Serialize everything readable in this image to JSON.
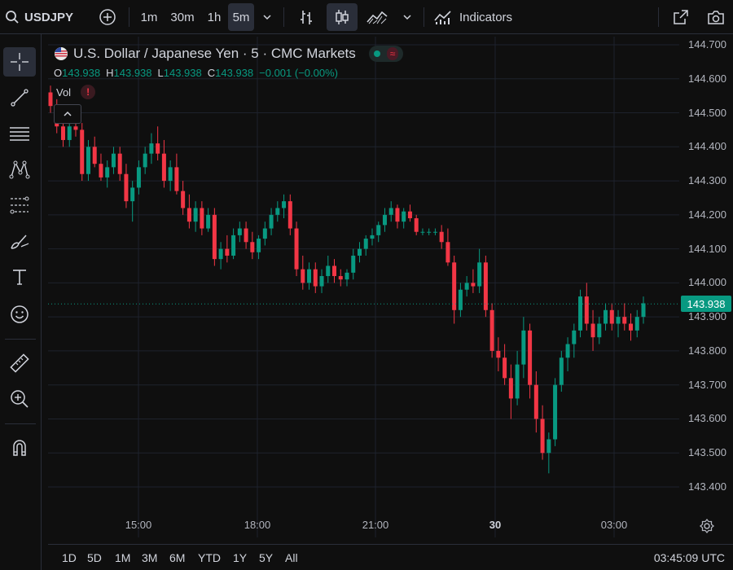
{
  "toolbar": {
    "symbol": "USDJPY",
    "intervals": [
      "1m",
      "30m",
      "1h",
      "5m"
    ],
    "active_interval": "5m",
    "indicators_label": "Indicators"
  },
  "legend": {
    "title": "U.S. Dollar / Japanese Yen · 5 · CMC Markets",
    "o_label": "O",
    "o_value": "143.938",
    "h_label": "H",
    "h_value": "143.938",
    "l_label": "L",
    "l_value": "143.938",
    "c_label": "C",
    "c_value": "143.938",
    "change": "−0.001 (−0.00%)",
    "vol_label": "Vol",
    "vol_alert": "!",
    "collapse_glyph": "^"
  },
  "price_axis": {
    "labels": [
      "144.700",
      "144.600",
      "144.500",
      "144.400",
      "144.300",
      "144.200",
      "144.100",
      "144.000",
      "143.900",
      "143.800",
      "143.700",
      "143.600",
      "143.500",
      "143.400"
    ],
    "current_price": "143.938"
  },
  "time_axis": {
    "labels": [
      "15:00",
      "18:00",
      "21:00",
      "30",
      "03:00"
    ]
  },
  "bottom": {
    "ranges": [
      "1D",
      "5D",
      "1M",
      "3M",
      "6M",
      "YTD",
      "1Y",
      "5Y",
      "All"
    ],
    "clock": "03:45:09 UTC"
  },
  "colors": {
    "up": "#089981",
    "down": "#f23645",
    "background": "#0f0f0f",
    "grid": "#1e222d"
  },
  "chart_data": {
    "type": "candlestick",
    "y_range": [
      143.35,
      144.75
    ],
    "last": 143.938,
    "candles": [
      [
        144.56,
        144.58,
        144.5,
        144.52
      ],
      [
        144.52,
        144.54,
        144.44,
        144.46
      ],
      [
        144.46,
        144.5,
        144.4,
        144.42
      ],
      [
        144.42,
        144.48,
        144.4,
        144.46
      ],
      [
        144.46,
        144.52,
        144.43,
        144.45
      ],
      [
        144.45,
        144.47,
        144.3,
        144.32
      ],
      [
        144.32,
        144.42,
        144.3,
        144.4
      ],
      [
        144.4,
        144.43,
        144.34,
        144.35
      ],
      [
        144.35,
        144.38,
        144.3,
        144.31
      ],
      [
        144.31,
        144.36,
        144.28,
        144.34
      ],
      [
        144.34,
        144.4,
        144.32,
        144.38
      ],
      [
        144.38,
        144.4,
        144.3,
        144.32
      ],
      [
        144.32,
        144.35,
        144.22,
        144.24
      ],
      [
        144.24,
        144.3,
        144.18,
        144.28
      ],
      [
        144.28,
        144.36,
        144.26,
        144.34
      ],
      [
        144.34,
        144.4,
        144.32,
        144.38
      ],
      [
        144.38,
        144.44,
        144.35,
        144.41
      ],
      [
        144.41,
        144.46,
        144.36,
        144.38
      ],
      [
        144.38,
        144.42,
        144.28,
        144.3
      ],
      [
        144.3,
        144.36,
        144.27,
        144.34
      ],
      [
        144.34,
        144.38,
        144.26,
        144.27
      ],
      [
        144.27,
        144.3,
        144.2,
        144.22
      ],
      [
        144.22,
        144.26,
        144.16,
        144.18
      ],
      [
        144.18,
        144.24,
        144.15,
        144.22
      ],
      [
        144.22,
        144.24,
        144.14,
        144.16
      ],
      [
        144.16,
        144.22,
        144.15,
        144.2
      ],
      [
        144.2,
        144.22,
        144.05,
        144.07
      ],
      [
        144.07,
        144.12,
        144.04,
        144.1
      ],
      [
        144.1,
        144.14,
        144.06,
        144.08
      ],
      [
        144.08,
        144.16,
        144.07,
        144.14
      ],
      [
        144.14,
        144.18,
        144.12,
        144.16
      ],
      [
        144.16,
        144.18,
        144.1,
        144.12
      ],
      [
        144.12,
        144.15,
        144.07,
        144.09
      ],
      [
        144.09,
        144.14,
        144.07,
        144.13
      ],
      [
        144.13,
        144.18,
        144.11,
        144.16
      ],
      [
        144.16,
        144.22,
        144.14,
        144.2
      ],
      [
        144.2,
        144.24,
        144.18,
        144.22
      ],
      [
        144.22,
        144.26,
        144.19,
        144.24
      ],
      [
        144.24,
        144.26,
        144.14,
        144.16
      ],
      [
        144.16,
        144.18,
        144.02,
        144.04
      ],
      [
        144.04,
        144.08,
        143.98,
        144.0
      ],
      [
        144.0,
        144.06,
        143.98,
        144.04
      ],
      [
        144.04,
        144.06,
        143.97,
        143.99
      ],
      [
        143.99,
        144.04,
        143.97,
        144.02
      ],
      [
        144.02,
        144.08,
        144.0,
        144.05
      ],
      [
        144.05,
        144.07,
        144.0,
        144.02
      ],
      [
        144.02,
        144.04,
        143.99,
        144.01
      ],
      [
        144.01,
        144.04,
        143.99,
        144.03
      ],
      [
        144.03,
        144.1,
        144.01,
        144.08
      ],
      [
        144.08,
        144.12,
        144.06,
        144.1
      ],
      [
        144.1,
        144.14,
        144.08,
        144.13
      ],
      [
        144.13,
        144.16,
        144.11,
        144.14
      ],
      [
        144.14,
        144.18,
        144.12,
        144.17
      ],
      [
        144.17,
        144.22,
        144.15,
        144.2
      ],
      [
        144.2,
        144.24,
        144.18,
        144.22
      ],
      [
        144.22,
        144.23,
        144.16,
        144.18
      ],
      [
        144.18,
        144.22,
        144.16,
        144.21
      ],
      [
        144.21,
        144.23,
        144.18,
        144.19
      ],
      [
        144.19,
        144.2,
        144.14,
        144.15
      ],
      [
        144.15,
        144.16,
        144.14,
        144.15
      ],
      [
        144.15,
        144.16,
        144.14,
        144.15
      ],
      [
        144.15,
        144.16,
        144.14,
        144.15
      ],
      [
        144.15,
        144.17,
        144.1,
        144.12
      ],
      [
        144.12,
        144.16,
        144.05,
        144.06
      ],
      [
        144.06,
        144.08,
        143.88,
        143.92
      ],
      [
        143.92,
        144.0,
        143.9,
        143.98
      ],
      [
        143.98,
        144.02,
        143.96,
        144.0
      ],
      [
        144.0,
        144.04,
        143.97,
        143.99
      ],
      [
        143.99,
        144.1,
        143.97,
        144.06
      ],
      [
        144.06,
        144.08,
        143.9,
        143.92
      ],
      [
        143.92,
        143.94,
        143.78,
        143.8
      ],
      [
        143.8,
        143.84,
        143.74,
        143.78
      ],
      [
        143.78,
        143.82,
        143.7,
        143.72
      ],
      [
        143.72,
        143.76,
        143.6,
        143.66
      ],
      [
        143.66,
        143.8,
        143.64,
        143.76
      ],
      [
        143.76,
        143.9,
        143.72,
        143.86
      ],
      [
        143.86,
        143.88,
        143.66,
        143.7
      ],
      [
        143.7,
        143.74,
        143.56,
        143.6
      ],
      [
        143.6,
        143.64,
        143.48,
        143.5
      ],
      [
        143.5,
        143.56,
        143.44,
        143.54
      ],
      [
        143.54,
        143.72,
        143.52,
        143.7
      ],
      [
        143.7,
        143.8,
        143.68,
        143.78
      ],
      [
        143.78,
        143.84,
        143.74,
        143.82
      ],
      [
        143.82,
        143.88,
        143.78,
        143.86
      ],
      [
        143.86,
        143.98,
        143.84,
        143.96
      ],
      [
        143.96,
        144.0,
        143.86,
        143.88
      ],
      [
        143.88,
        143.92,
        143.8,
        143.84
      ],
      [
        143.84,
        143.9,
        143.82,
        143.88
      ],
      [
        143.88,
        143.94,
        143.86,
        143.92
      ],
      [
        143.92,
        143.94,
        143.86,
        143.88
      ],
      [
        143.88,
        143.92,
        143.84,
        143.9
      ],
      [
        143.9,
        143.94,
        143.86,
        143.88
      ],
      [
        143.88,
        143.91,
        143.83,
        143.86
      ],
      [
        143.86,
        143.92,
        143.84,
        143.9
      ],
      [
        143.9,
        143.96,
        143.88,
        143.94
      ]
    ]
  }
}
